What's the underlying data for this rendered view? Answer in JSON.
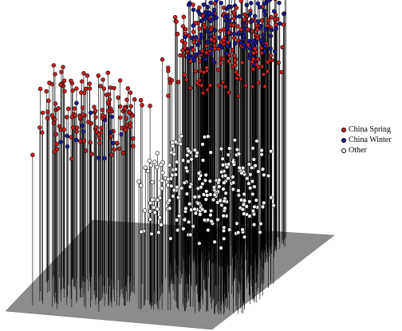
{
  "chart_data": {
    "type": "scatter",
    "subtype": "3d-needle-scatter",
    "title": "",
    "xlabel": "",
    "ylabel": "",
    "zlabel": "",
    "grid": false,
    "legend_position": "right",
    "base_plane_color": "#8c8c8c",
    "needle_color": "#000000",
    "series": [
      {
        "name": "China Spring",
        "color": "#cc1f1f",
        "clusters": [
          {
            "x": [
              0.05,
              0.45
            ],
            "y": [
              0.55,
              0.95
            ],
            "z": [
              0.55,
              0.8
            ],
            "count": 140
          },
          {
            "x": [
              0.45,
              0.85
            ],
            "y": [
              0.05,
              0.5
            ],
            "z": [
              0.65,
              0.95
            ],
            "count": 200
          }
        ]
      },
      {
        "name": "China Winter",
        "color": "#1a1a99",
        "clusters": [
          {
            "x": [
              0.5,
              0.85
            ],
            "y": [
              0.1,
              0.4
            ],
            "z": [
              0.75,
              1.0
            ],
            "count": 170
          },
          {
            "x": [
              0.15,
              0.4
            ],
            "y": [
              0.6,
              0.9
            ],
            "z": [
              0.55,
              0.7
            ],
            "count": 15
          }
        ]
      },
      {
        "name": "Other",
        "color": "#ffffff",
        "clusters": [
          {
            "x": [
              0.5,
              0.95
            ],
            "y": [
              0.5,
              0.9
            ],
            "z": [
              0.25,
              0.55
            ],
            "count": 260
          }
        ]
      }
    ]
  }
}
